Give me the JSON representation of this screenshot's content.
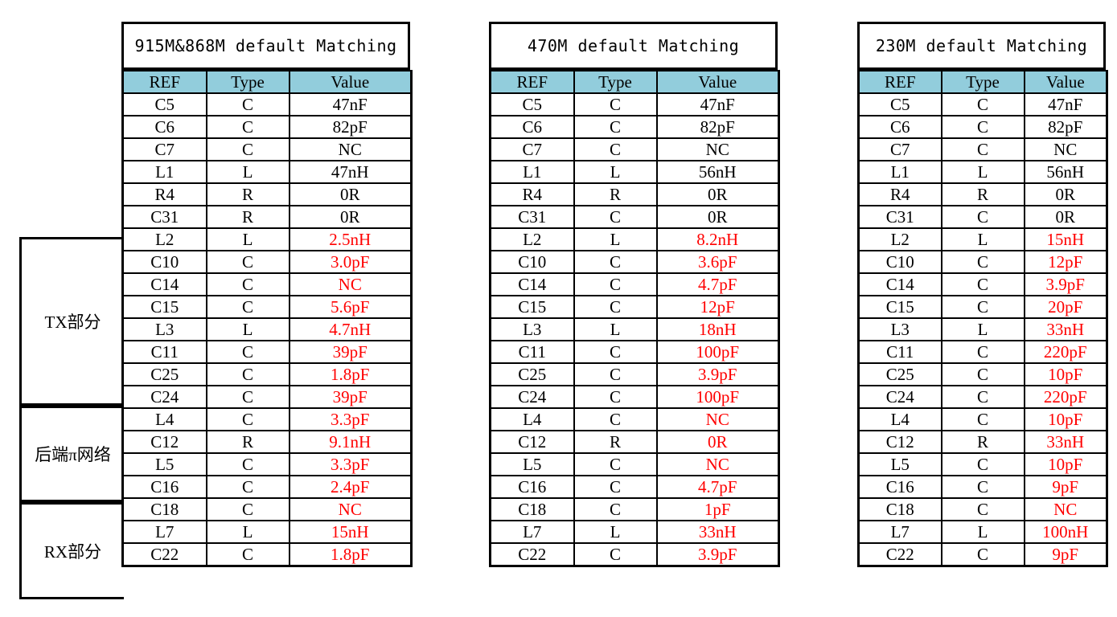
{
  "groups": [
    {
      "label": "TX部分"
    },
    {
      "label": "后端π网络"
    },
    {
      "label": "RX部分"
    }
  ],
  "tables": [
    {
      "title": "915M&868M default Matching",
      "headers": [
        "REF",
        "Type",
        "Value"
      ],
      "rows": [
        {
          "ref": "C5",
          "type": "C",
          "value": "47nF",
          "red": false
        },
        {
          "ref": "C6",
          "type": "C",
          "value": "82pF",
          "red": false
        },
        {
          "ref": "C7",
          "type": "C",
          "value": "NC",
          "red": false
        },
        {
          "ref": "L1",
          "type": "L",
          "value": "47nH",
          "red": false
        },
        {
          "ref": "R4",
          "type": "R",
          "value": "0R",
          "red": false
        },
        {
          "ref": "C31",
          "type": "R",
          "value": "0R",
          "red": false
        },
        {
          "ref": "L2",
          "type": "L",
          "value": "2.5nH",
          "red": true
        },
        {
          "ref": "C10",
          "type": "C",
          "value": "3.0pF",
          "red": true
        },
        {
          "ref": "C14",
          "type": "C",
          "value": "NC",
          "red": true
        },
        {
          "ref": "C15",
          "type": "C",
          "value": "5.6pF",
          "red": true
        },
        {
          "ref": "L3",
          "type": "L",
          "value": "4.7nH",
          "red": true
        },
        {
          "ref": "C11",
          "type": "C",
          "value": "39pF",
          "red": true
        },
        {
          "ref": "C25",
          "type": "C",
          "value": "1.8pF",
          "red": true
        },
        {
          "ref": "C24",
          "type": "C",
          "value": "39pF",
          "red": true
        },
        {
          "ref": "L4",
          "type": "C",
          "value": "3.3pF",
          "red": true
        },
        {
          "ref": "C12",
          "type": "R",
          "value": "9.1nH",
          "red": true
        },
        {
          "ref": "L5",
          "type": "C",
          "value": "3.3pF",
          "red": true
        },
        {
          "ref": "C16",
          "type": "C",
          "value": "2.4pF",
          "red": true
        },
        {
          "ref": "C18",
          "type": "C",
          "value": "NC",
          "red": true
        },
        {
          "ref": "L7",
          "type": "L",
          "value": "15nH",
          "red": true
        },
        {
          "ref": "C22",
          "type": "C",
          "value": "1.8pF",
          "red": true
        }
      ]
    },
    {
      "title": "470M default Matching",
      "headers": [
        "REF",
        "Type",
        "Value"
      ],
      "rows": [
        {
          "ref": "C5",
          "type": "C",
          "value": "47nF",
          "red": false
        },
        {
          "ref": "C6",
          "type": "C",
          "value": "82pF",
          "red": false
        },
        {
          "ref": "C7",
          "type": "C",
          "value": "NC",
          "red": false
        },
        {
          "ref": "L1",
          "type": "L",
          "value": "56nH",
          "red": false
        },
        {
          "ref": "R4",
          "type": "R",
          "value": "0R",
          "red": false
        },
        {
          "ref": "C31",
          "type": "C",
          "value": "0R",
          "red": false
        },
        {
          "ref": "L2",
          "type": "L",
          "value": "8.2nH",
          "red": true
        },
        {
          "ref": "C10",
          "type": "C",
          "value": "3.6pF",
          "red": true
        },
        {
          "ref": "C14",
          "type": "C",
          "value": "4.7pF",
          "red": true
        },
        {
          "ref": "C15",
          "type": "C",
          "value": "12pF",
          "red": true
        },
        {
          "ref": "L3",
          "type": "L",
          "value": "18nH",
          "red": true
        },
        {
          "ref": "C11",
          "type": "C",
          "value": "100pF",
          "red": true
        },
        {
          "ref": "C25",
          "type": "C",
          "value": "3.9pF",
          "red": true
        },
        {
          "ref": "C24",
          "type": "C",
          "value": "100pF",
          "red": true
        },
        {
          "ref": "L4",
          "type": "C",
          "value": "NC",
          "red": true
        },
        {
          "ref": "C12",
          "type": "R",
          "value": "0R",
          "red": true
        },
        {
          "ref": "L5",
          "type": "C",
          "value": "NC",
          "red": true
        },
        {
          "ref": "C16",
          "type": "C",
          "value": "4.7pF",
          "red": true
        },
        {
          "ref": "C18",
          "type": "C",
          "value": "1pF",
          "red": true
        },
        {
          "ref": "L7",
          "type": "L",
          "value": "33nH",
          "red": true
        },
        {
          "ref": "C22",
          "type": "C",
          "value": "3.9pF",
          "red": true
        }
      ]
    },
    {
      "title": "230M default Matching",
      "headers": [
        "REF",
        "Type",
        "Value"
      ],
      "rows": [
        {
          "ref": "C5",
          "type": "C",
          "value": "47nF",
          "red": false
        },
        {
          "ref": "C6",
          "type": "C",
          "value": "82pF",
          "red": false
        },
        {
          "ref": "C7",
          "type": "C",
          "value": "NC",
          "red": false
        },
        {
          "ref": "L1",
          "type": "L",
          "value": "56nH",
          "red": false
        },
        {
          "ref": "R4",
          "type": "R",
          "value": "0R",
          "red": false
        },
        {
          "ref": "C31",
          "type": "C",
          "value": "0R",
          "red": false
        },
        {
          "ref": "L2",
          "type": "L",
          "value": "15nH",
          "red": true
        },
        {
          "ref": "C10",
          "type": "C",
          "value": "12pF",
          "red": true
        },
        {
          "ref": "C14",
          "type": "C",
          "value": "3.9pF",
          "red": true
        },
        {
          "ref": "C15",
          "type": "C",
          "value": "20pF",
          "red": true
        },
        {
          "ref": "L3",
          "type": "L",
          "value": "33nH",
          "red": true
        },
        {
          "ref": "C11",
          "type": "C",
          "value": "220pF",
          "red": true
        },
        {
          "ref": "C25",
          "type": "C",
          "value": "10pF",
          "red": true
        },
        {
          "ref": "C24",
          "type": "C",
          "value": "220pF",
          "red": true
        },
        {
          "ref": "L4",
          "type": "C",
          "value": "10pF",
          "red": true
        },
        {
          "ref": "C12",
          "type": "R",
          "value": "33nH",
          "red": true
        },
        {
          "ref": "L5",
          "type": "C",
          "value": "10pF",
          "red": true
        },
        {
          "ref": "C16",
          "type": "C",
          "value": "9pF",
          "red": true
        },
        {
          "ref": "C18",
          "type": "C",
          "value": "NC",
          "red": true
        },
        {
          "ref": "L7",
          "type": "L",
          "value": "100nH",
          "red": true
        },
        {
          "ref": "C22",
          "type": "C",
          "value": "9pF",
          "red": true
        }
      ]
    }
  ],
  "colors": {
    "header_bg": "#92cddc",
    "highlight_text": "#ff0000",
    "border": "#000000"
  }
}
